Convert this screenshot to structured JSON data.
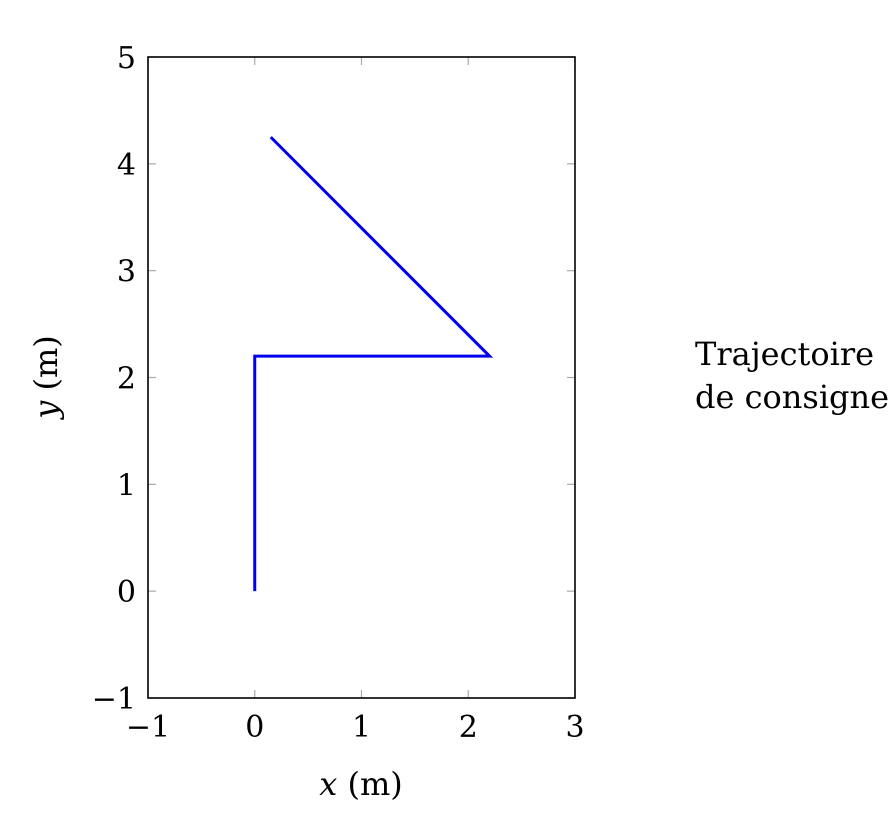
{
  "chart_data": {
    "type": "line",
    "series": [
      {
        "name": "Trajectoire de consigne",
        "color": "#0000ee",
        "x": [
          0,
          0,
          2.2,
          0.15
        ],
        "y": [
          0,
          2.2,
          2.2,
          4.25
        ]
      }
    ],
    "xlabel": {
      "var": "x",
      "unit": " (m)"
    },
    "ylabel": {
      "var": "y",
      "unit": " (m)"
    },
    "xlim": [
      -1,
      3
    ],
    "ylim": [
      -1,
      5
    ],
    "xticks": [
      -1,
      0,
      1,
      2,
      3
    ],
    "xtick_labels": [
      "−1",
      "0",
      "1",
      "2",
      "3"
    ],
    "yticks": [
      -1,
      0,
      1,
      2,
      3,
      4,
      5
    ],
    "ytick_labels": [
      "−1",
      "0",
      "1",
      "2",
      "3",
      "4",
      "5"
    ],
    "grid": false,
    "legend": {
      "placement": "right",
      "lines": [
        "Trajectoire",
        "de consigne"
      ]
    }
  }
}
